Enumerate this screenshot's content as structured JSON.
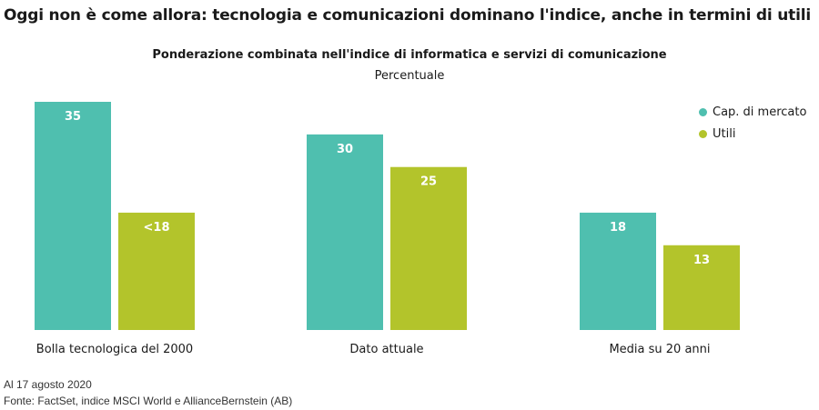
{
  "headline": "Oggi non è come allora: tecnologia e comunicazioni dominano l'indice, anche in termini di utili",
  "chart_data": {
    "type": "bar",
    "title": "Ponderazione combinata nell'indice di informatica e servizi di comunicazione",
    "subtitle": "Percentuale",
    "categories": [
      "Bolla tecnologica del 2000",
      "Dato attuale",
      "Media su 20 anni"
    ],
    "series": [
      {
        "name": "Cap. di mercato",
        "color": "#4fbfaf",
        "values": [
          35,
          30,
          18
        ],
        "labels": [
          "35",
          "30",
          "18"
        ]
      },
      {
        "name": "Utili",
        "color": "#b3c42b",
        "values": [
          18,
          25,
          13
        ],
        "labels": [
          "<18",
          "25",
          "13"
        ]
      }
    ],
    "ylim": [
      0,
      35
    ],
    "grid": false,
    "legend_position": "top-right"
  },
  "footnotes": {
    "date": "Al 17 agosto 2020",
    "source": "Fonte: FactSet, indice MSCI World e AllianceBernstein (AB)"
  }
}
